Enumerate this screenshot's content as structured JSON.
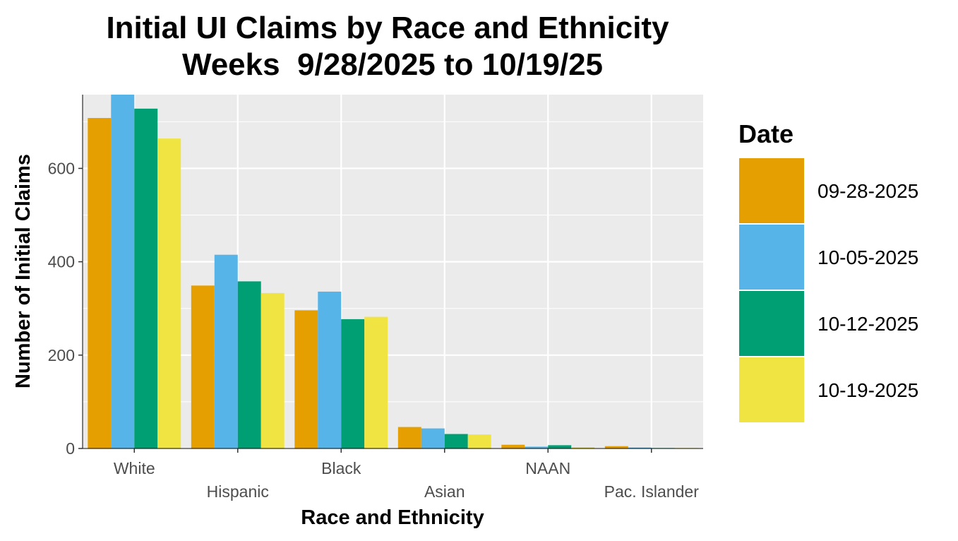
{
  "chart_data": {
    "type": "bar",
    "title": "Initial UI Claims by Race and Ethnicity",
    "subtitle": "Weeks  9/28/2025 to 10/19/25",
    "xlabel": "Race and Ethnicity",
    "ylabel": "Number of Initial Claims",
    "categories": [
      "White",
      "Hispanic",
      "Black",
      "Asian",
      "NAAN",
      "Pac. Islander"
    ],
    "series": [
      {
        "name": "09-28-2025",
        "color": "#E69F00",
        "values": [
          708,
          349,
          296,
          46,
          8,
          5
        ]
      },
      {
        "name": "10-05-2025",
        "color": "#56B4E9",
        "values": [
          758,
          415,
          336,
          43,
          4,
          2
        ]
      },
      {
        "name": "10-12-2025",
        "color": "#009E73",
        "values": [
          728,
          358,
          277,
          31,
          7,
          1
        ]
      },
      {
        "name": "10-19-2025",
        "color": "#F0E442",
        "values": [
          664,
          333,
          282,
          30,
          3,
          1
        ]
      }
    ],
    "ylim": [
      0,
      758
    ],
    "yticks": [
      0,
      200,
      400,
      600
    ],
    "legend_title": "Date",
    "legend_position": "right",
    "grid": true,
    "panel_color": "#EBEBEB"
  }
}
